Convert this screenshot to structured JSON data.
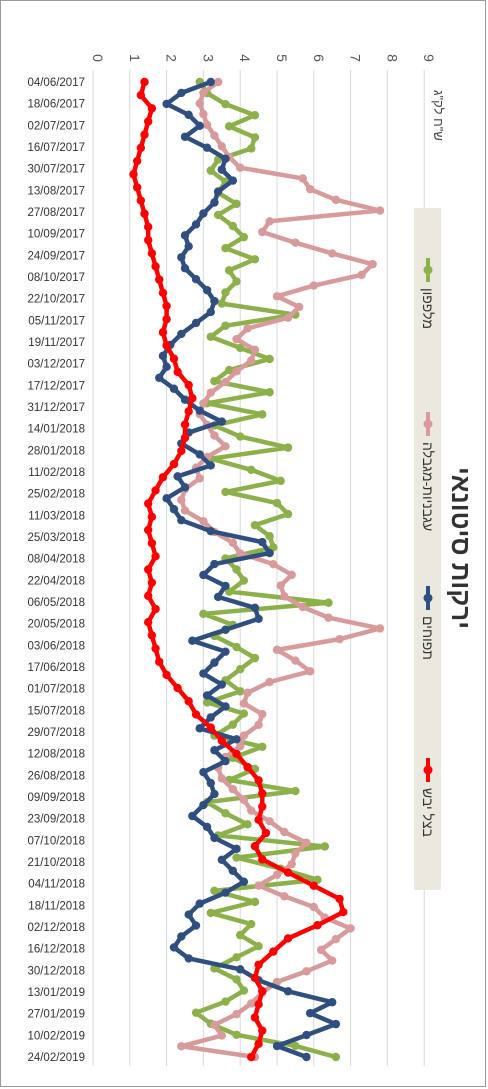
{
  "chart_data": {
    "type": "line",
    "title": "ירקות סיטונאי",
    "ylabel": "ש\"ח לק\"ג",
    "ylim": [
      0,
      9
    ],
    "yticks": [
      0,
      1,
      2,
      3,
      4,
      5,
      6,
      7,
      8,
      9
    ],
    "x_tick_labels": [
      "04/06/2017",
      "18/06/2017",
      "02/07/2017",
      "16/07/2017",
      "30/07/2017",
      "13/08/2017",
      "27/08/2017",
      "10/09/2017",
      "24/09/2017",
      "08/10/2017",
      "22/10/2017",
      "05/11/2017",
      "19/11/2017",
      "03/12/2017",
      "17/12/2017",
      "31/12/2017",
      "14/01/2018",
      "28/01/2018",
      "11/02/2018",
      "25/02/2018",
      "11/03/2018",
      "25/03/2018",
      "08/04/2018",
      "22/04/2018",
      "06/05/2018",
      "20/05/2018",
      "03/06/2018",
      "17/06/2018",
      "01/07/2018",
      "15/07/2018",
      "29/07/2018",
      "12/08/2018",
      "26/08/2018",
      "09/09/2018",
      "23/09/2018",
      "07/10/2018",
      "21/10/2018",
      "04/11/2018",
      "18/11/2018",
      "02/12/2018",
      "16/12/2018",
      "30/12/2018",
      "13/01/2019",
      "27/01/2019",
      "10/02/2019",
      "24/02/2019"
    ],
    "grid": true,
    "legend_position": "right",
    "orientation": "rotated-90-clockwise",
    "series": [
      {
        "name": "מלפפון",
        "color": "#8cb04a",
        "values": [
          2.9,
          3.1,
          3.6,
          4.4,
          3.7,
          4.4,
          4.3,
          3.4,
          3.2,
          3.6,
          3.4,
          3.9,
          3.4,
          3.8,
          4.1,
          3.6,
          4.4,
          3.7,
          3.9,
          3.6,
          3.5,
          5.5,
          3.6,
          3.2,
          4.0,
          4.8,
          3.7,
          3.3,
          4.8,
          3.1,
          4.6,
          3.3,
          4.0,
          5.3,
          3.2,
          4.3,
          5.1,
          3.6,
          5.0,
          5.3,
          4.4,
          4.8,
          4.9,
          3.6,
          3.9,
          4.1,
          3.7,
          6.4,
          3.0,
          3.8,
          3.3,
          3.9,
          4.4,
          4.0,
          3.6,
          4.0,
          3.1,
          4.1,
          3.8,
          3.3,
          4.6,
          3.8,
          4.4,
          3.7,
          5.5,
          3.1,
          3.6,
          4.2,
          3.4,
          6.3,
          3.9,
          5.1,
          6.1,
          3.3,
          4.4,
          3.2,
          4.3,
          4.0,
          4.5,
          3.9,
          3.3,
          3.9,
          4.1,
          3.6,
          2.8,
          3.2,
          3.9,
          5.5,
          6.6
        ]
      },
      {
        "name": "עגבניות-מגבלה",
        "color": "#d89a9a",
        "values": [
          3.4,
          3.0,
          2.9,
          3.0,
          3.1,
          3.3,
          3.5,
          3.7,
          4.0,
          5.7,
          5.9,
          6.6,
          7.8,
          4.8,
          4.6,
          5.5,
          6.5,
          7.6,
          7.3,
          6.0,
          5.0,
          5.6,
          5.3,
          4.2,
          3.9,
          4.4,
          4.3,
          3.9,
          3.6,
          3.2,
          3.0,
          2.9,
          3.1,
          3.3,
          3.6,
          3.1,
          2.8,
          2.9,
          2.5,
          2.4,
          2.5,
          3.0,
          3.3,
          3.8,
          4.0,
          4.9,
          5.4,
          5.1,
          5.2,
          5.7,
          6.4,
          7.8,
          6.7,
          5.0,
          5.5,
          5.9,
          4.8,
          4.2,
          4.1,
          4.6,
          4.5,
          4.1,
          4.0,
          3.6,
          3.4,
          3.5,
          3.8,
          4.1,
          4.3,
          4.8,
          5.2,
          5.8,
          5.5,
          5.4,
          5.0,
          4.5,
          5.2,
          6.0,
          6.3,
          7.0,
          6.6,
          6.2,
          6.5,
          5.8,
          5.0,
          4.6,
          4.3,
          3.9,
          3.3,
          3.5,
          2.4,
          4.4
        ]
      },
      {
        "name": "תפוחים",
        "color": "#2f4f80",
        "values": [
          3.2,
          2.4,
          2.0,
          2.6,
          2.9,
          2.5,
          3.1,
          3.6,
          3.5,
          3.8,
          3.4,
          3.3,
          3.0,
          2.8,
          2.5,
          2.6,
          2.4,
          2.5,
          2.8,
          3.1,
          3.3,
          3.2,
          2.8,
          2.4,
          2.1,
          1.9,
          2.0,
          1.8,
          2.2,
          2.5,
          2.9,
          3.5,
          2.6,
          2.4,
          2.9,
          3.2,
          2.3,
          2.5,
          2.0,
          2.2,
          2.4,
          3.2,
          4.6,
          4.8,
          3.3,
          3.0,
          3.6,
          3.4,
          4.4,
          4.5,
          3.6,
          2.7,
          3.6,
          3.3,
          3.0,
          3.5,
          3.1,
          3.6,
          3.2,
          2.9,
          3.9,
          3.3,
          3.6,
          3.0,
          3.2,
          3.3,
          3.0,
          2.7,
          3.1,
          3.3,
          3.9,
          3.5,
          3.8,
          4.1,
          3.6,
          2.9,
          2.6,
          2.8,
          2.4,
          2.2,
          2.6,
          4.0,
          4.5,
          5.3,
          6.5,
          5.9,
          6.6,
          5.8,
          5.0,
          5.8
        ]
      },
      {
        "name": "בצל יבש",
        "color": "#ff0000",
        "values": [
          1.4,
          1.3,
          1.6,
          1.5,
          1.4,
          1.3,
          1.2,
          1.1,
          1.2,
          1.3,
          1.4,
          1.5,
          1.5,
          1.6,
          1.7,
          1.8,
          1.9,
          2.0,
          2.0,
          1.9,
          2.0,
          2.2,
          2.3,
          2.6,
          2.7,
          2.6,
          2.5,
          2.5,
          2.4,
          2.2,
          1.9,
          1.7,
          1.5,
          1.6,
          1.5,
          1.6,
          1.7,
          1.5,
          1.6,
          1.5,
          1.7,
          1.5,
          1.6,
          1.7,
          1.8,
          2.0,
          2.3,
          2.6,
          2.8,
          3.2,
          3.5,
          3.9,
          4.2,
          4.5,
          4.6,
          4.6,
          4.5,
          4.7,
          4.4,
          4.6,
          5.3,
          6.0,
          6.7,
          6.8,
          6.1,
          5.3,
          4.9,
          4.5,
          4.4,
          4.6,
          4.5,
          4.4,
          4.6,
          4.5,
          4.3
        ]
      }
    ]
  }
}
